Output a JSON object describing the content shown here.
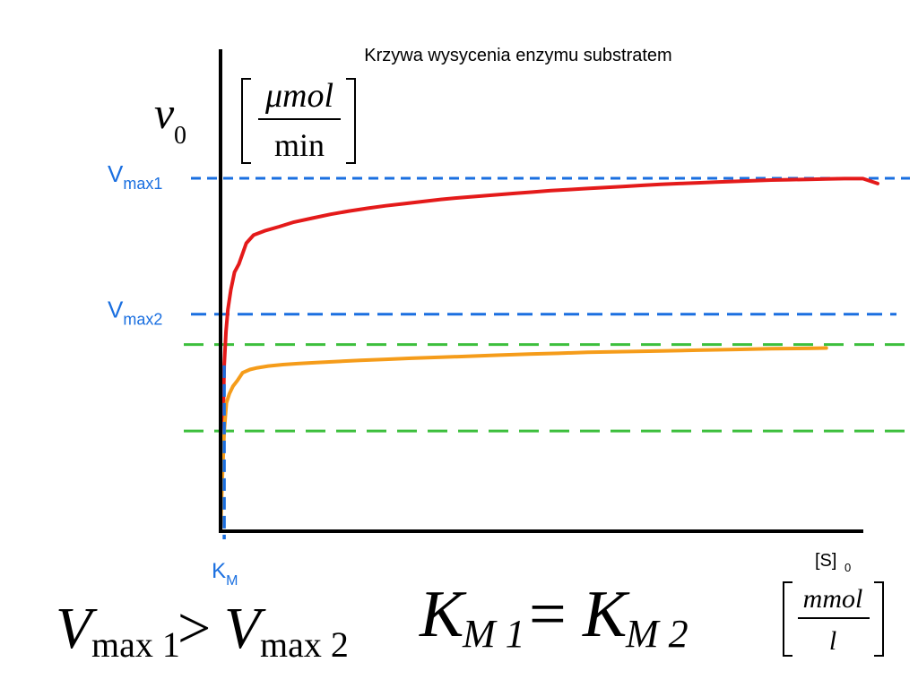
{
  "chart_data": {
    "type": "line",
    "title": "Krzywa wysycenia enzymu substratem",
    "ylabel": {
      "symbol": "v",
      "subscript": "0",
      "unit_numerator_mu": "μ",
      "unit_numerator": "mol",
      "unit_denominator": "min"
    },
    "xlabel": {
      "symbol": "[S]",
      "subscript": "0",
      "unit_numerator": "mmol",
      "unit_denominator": "l"
    },
    "reference_lines": [
      {
        "label": "V",
        "subscript": "max1",
        "value": 1.0,
        "color": "#1a6fe0"
      },
      {
        "label": "V",
        "subscript": "max2",
        "value": 0.615,
        "color": "#1a6fe0"
      },
      {
        "label": "",
        "subscript": "",
        "value": 0.529,
        "color": "#3cbf3c"
      },
      {
        "label": "",
        "subscript": "",
        "value": 0.284,
        "color": "#3cbf3c"
      }
    ],
    "km_marker": {
      "label": "K",
      "subscript": "M",
      "x": 1,
      "color": "#1a6fe0"
    },
    "series": [
      {
        "color": "#e41a1a",
        "x": [
          0,
          0.3,
          0.6,
          1,
          1.5,
          2,
          2.8,
          3.8,
          5,
          7,
          9,
          12,
          16,
          20,
          25,
          30,
          35,
          40,
          45,
          50,
          55,
          60,
          65,
          70,
          75,
          80,
          85,
          90,
          95,
          100,
          105,
          110,
          115,
          120,
          125,
          130,
          135,
          140,
          145,
          150,
          155,
          160,
          165,
          170,
          175,
          179
        ],
        "y": [
          0,
          0.151,
          0.272,
          0.47,
          0.566,
          0.628,
          0.684,
          0.734,
          0.757,
          0.816,
          0.839,
          0.851,
          0.863,
          0.876,
          0.887,
          0.898,
          0.907,
          0.915,
          0.922,
          0.928,
          0.934,
          0.94,
          0.945,
          0.949,
          0.953,
          0.957,
          0.961,
          0.965,
          0.968,
          0.971,
          0.974,
          0.977,
          0.98,
          0.983,
          0.985,
          0.987,
          0.989,
          0.991,
          0.993,
          0.995,
          0.996,
          0.997,
          0.998,
          0.999,
          0.999,
          0.985
        ]
      },
      {
        "color": "#f59c1a",
        "x": [
          0,
          0.5,
          1,
          1.6,
          2.4,
          3.4,
          4.6,
          6,
          8,
          10,
          13,
          17,
          21,
          26,
          32,
          38,
          45,
          52,
          60,
          68,
          76,
          84,
          92,
          100,
          110,
          120,
          130,
          140,
          150,
          160,
          165
        ],
        "y": [
          0,
          0.152,
          0.284,
          0.364,
          0.389,
          0.411,
          0.427,
          0.449,
          0.458,
          0.463,
          0.468,
          0.472,
          0.475,
          0.478,
          0.481,
          0.484,
          0.487,
          0.49,
          0.493,
          0.496,
          0.499,
          0.502,
          0.504,
          0.507,
          0.509,
          0.511,
          0.513,
          0.515,
          0.517,
          0.518,
          0.519
        ]
      }
    ],
    "equations": {
      "left": {
        "a": "V",
        "a_sub": "max 1",
        "op": ">",
        "b": "V",
        "b_sub": "max 2"
      },
      "right": {
        "a": "K",
        "a_sub": "M 1",
        "op": "=",
        "b": "K",
        "b_sub": "M 2"
      }
    },
    "grid": false,
    "legend": "none"
  }
}
